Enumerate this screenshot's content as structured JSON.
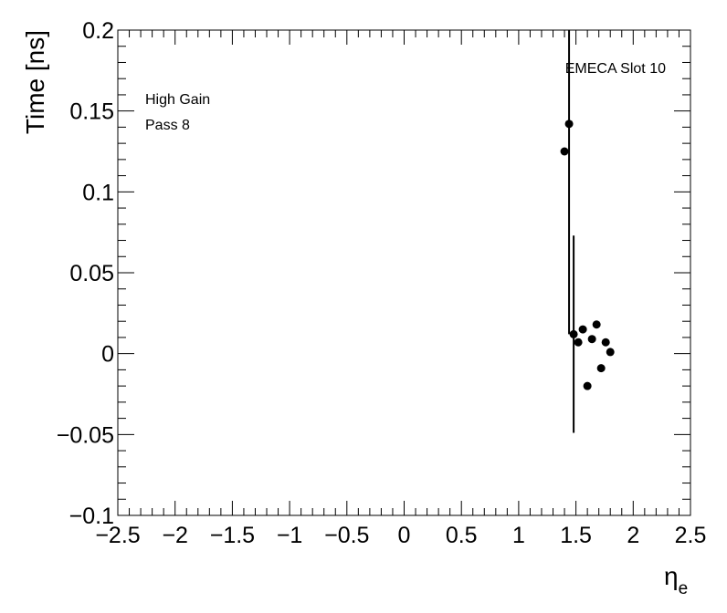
{
  "chart_data": {
    "type": "scatter",
    "title": "",
    "xlabel": "η",
    "xlabel_sub": "e",
    "ylabel": "Time [ns]",
    "xlim": [
      -2.5,
      2.5
    ],
    "ylim": [
      -0.1,
      0.2
    ],
    "x_ticks": [
      -2.5,
      -2,
      -1.5,
      -1,
      -0.5,
      0,
      0.5,
      1,
      1.5,
      2,
      2.5
    ],
    "x_tick_labels": [
      "−2.5",
      "−2",
      "−1.5",
      "−1",
      "−0.5",
      "0",
      "0.5",
      "1",
      "1.5",
      "2",
      "2.5"
    ],
    "y_ticks": [
      -0.1,
      -0.05,
      0,
      0.05,
      0.1,
      0.15,
      0.2
    ],
    "y_tick_labels": [
      "−0.1",
      "−0.05",
      "0",
      "0.05",
      "0.1",
      "0.15",
      "0.2"
    ],
    "grid": false,
    "annotations": {
      "top_right": "EMECA Slot 10",
      "top_left_line1": "High Gain",
      "top_left_line2": "Pass 8"
    },
    "points": [
      {
        "x": 1.4,
        "y": 0.125,
        "yerr_low": null,
        "yerr_high": null
      },
      {
        "x": 1.44,
        "y": 0.142,
        "yerr_low": 0.012,
        "yerr_high": 0.2
      },
      {
        "x": 1.48,
        "y": 0.012,
        "yerr_low": -0.049,
        "yerr_high": 0.073
      },
      {
        "x": 1.52,
        "y": 0.007,
        "yerr_low": null,
        "yerr_high": null
      },
      {
        "x": 1.56,
        "y": 0.015,
        "yerr_low": null,
        "yerr_high": null
      },
      {
        "x": 1.6,
        "y": -0.02,
        "yerr_low": null,
        "yerr_high": null
      },
      {
        "x": 1.64,
        "y": 0.009,
        "yerr_low": null,
        "yerr_high": null
      },
      {
        "x": 1.68,
        "y": 0.018,
        "yerr_low": null,
        "yerr_high": null
      },
      {
        "x": 1.72,
        "y": -0.009,
        "yerr_low": null,
        "yerr_high": null
      },
      {
        "x": 1.76,
        "y": 0.007,
        "yerr_low": null,
        "yerr_high": null
      },
      {
        "x": 1.8,
        "y": 0.001,
        "yerr_low": null,
        "yerr_high": null
      }
    ]
  }
}
